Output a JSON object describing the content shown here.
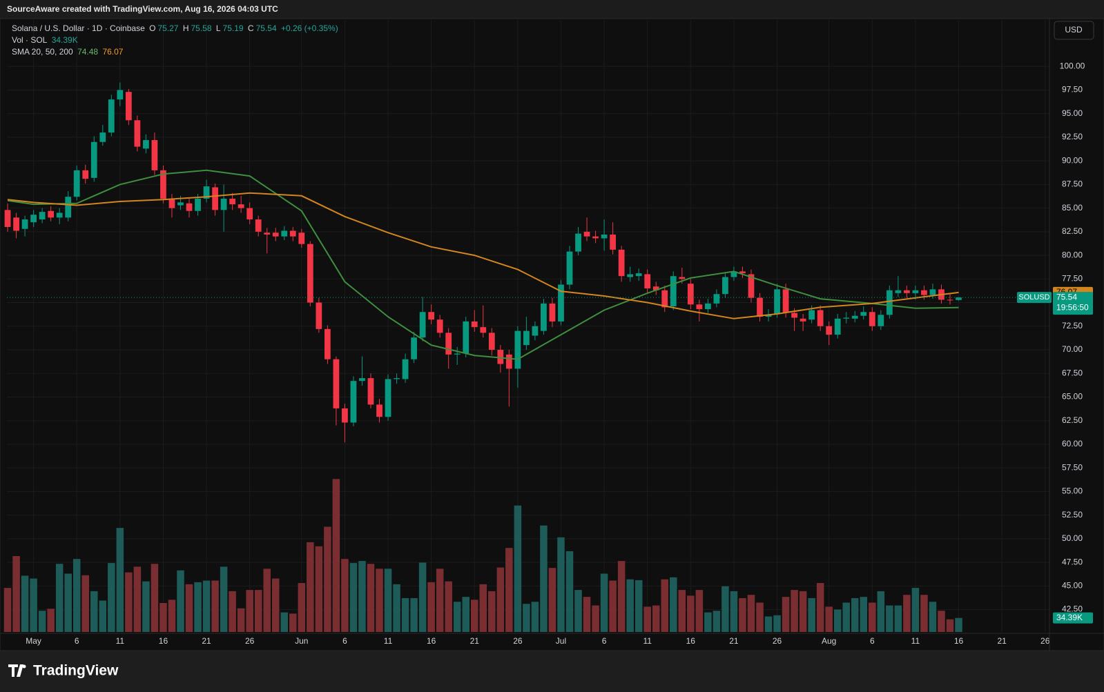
{
  "header": {
    "attribution": "SourceAware created with TradingView.com, Aug 16, 2026 04:03 UTC",
    "logo_text": "TradingView"
  },
  "chart_data": {
    "type": "candlestick",
    "title": "Solana / U.S. Dollar · 1D · Coinbase",
    "legend": {
      "o": "O",
      "h": "H",
      "l": "L",
      "c": "C",
      "change": "+0.26 (+0.35%)",
      "indicator_label": "SMA 20, 50, 200"
    },
    "currency_button": "USD",
    "symbol_tag": "SOLUSD",
    "countdown": "19:56:50",
    "colors": {
      "up": "#089981",
      "down": "#f23645",
      "vol_up": "#1d5c58",
      "vol_down": "#7a2e32"
    },
    "x": [
      "2026-04-28",
      "2026-04-29",
      "2026-04-30",
      "2026-05-01",
      "2026-05-02",
      "2026-05-03",
      "2026-05-04",
      "2026-05-05",
      "2026-05-06",
      "2026-05-07",
      "2026-05-08",
      "2026-05-09",
      "2026-05-10",
      "2026-05-11",
      "2026-05-12",
      "2026-05-13",
      "2026-05-14",
      "2026-05-15",
      "2026-05-16",
      "2026-05-17",
      "2026-05-18",
      "2026-05-19",
      "2026-05-20",
      "2026-05-21",
      "2026-05-22",
      "2026-05-23",
      "2026-05-24",
      "2026-05-25",
      "2026-05-26",
      "2026-05-27",
      "2026-05-28",
      "2026-05-29",
      "2026-05-30",
      "2026-05-31",
      "2026-06-01",
      "2026-06-02",
      "2026-06-03",
      "2026-06-04",
      "2026-06-05",
      "2026-06-06",
      "2026-06-07",
      "2026-06-08",
      "2026-06-09",
      "2026-06-10",
      "2026-06-11",
      "2026-06-12",
      "2026-06-13",
      "2026-06-14",
      "2026-06-15",
      "2026-06-16",
      "2026-06-17",
      "2026-06-18",
      "2026-06-19",
      "2026-06-20",
      "2026-06-21",
      "2026-06-22",
      "2026-06-23",
      "2026-06-24",
      "2026-06-25",
      "2026-06-26",
      "2026-06-27",
      "2026-06-28",
      "2026-06-29",
      "2026-06-30",
      "2026-07-01",
      "2026-07-02",
      "2026-07-03",
      "2026-07-04",
      "2026-07-05",
      "2026-07-06",
      "2026-07-07",
      "2026-07-08",
      "2026-07-09",
      "2026-07-10",
      "2026-07-11",
      "2026-07-12",
      "2026-07-13",
      "2026-07-14",
      "2026-07-15",
      "2026-07-16",
      "2026-07-17",
      "2026-07-18",
      "2026-07-19",
      "2026-07-20",
      "2026-07-21",
      "2026-07-22",
      "2026-07-23",
      "2026-07-24",
      "2026-07-25",
      "2026-07-26",
      "2026-07-27",
      "2026-07-28",
      "2026-07-29",
      "2026-07-30",
      "2026-07-31",
      "2026-08-01",
      "2026-08-02",
      "2026-08-03",
      "2026-08-04",
      "2026-08-05",
      "2026-08-06",
      "2026-08-07",
      "2026-08-08",
      "2026-08-09",
      "2026-08-10",
      "2026-08-11",
      "2026-08-12",
      "2026-08-13",
      "2026-08-14",
      "2026-08-15",
      "2026-08-16"
    ],
    "open": [
      84.8,
      84.0,
      82.8,
      83.5,
      83.8,
      84.7,
      84.0,
      84.0,
      86.2,
      89.0,
      88.2,
      92.0,
      93.0,
      96.5,
      97.3,
      94.3,
      91.3,
      92.2,
      89.0,
      86.0,
      85.3,
      85.5,
      84.7,
      86.0,
      87.2,
      84.8,
      86.0,
      85.4,
      85.0,
      83.8,
      82.4,
      82.4,
      82.0,
      82.6,
      82.4,
      81.2,
      75.0,
      72.2,
      69.0,
      63.8,
      62.3,
      66.7,
      67.0,
      64.2,
      62.9,
      66.9,
      66.9,
      69.0,
      71.3,
      74.0,
      73.2,
      71.8,
      69.5,
      69.6,
      73.0,
      72.4,
      71.8,
      70.0,
      69.5,
      68.0,
      70.5,
      71.5,
      72.0,
      74.9,
      73.0,
      76.9,
      80.4,
      82.5,
      82.0,
      81.8,
      82.2,
      80.6,
      77.7,
      77.8,
      78.0,
      76.7,
      76.3,
      74.6,
      77.7,
      77.0,
      74.8,
      74.3,
      74.9,
      75.9,
      77.7,
      78.3,
      78.0,
      75.5,
      73.5,
      73.8,
      76.4,
      73.9,
      73.3,
      73.2,
      74.2,
      72.5,
      71.6,
      73.3,
      73.3,
      73.6,
      74.0,
      72.5,
      73.7,
      76.0,
      76.3,
      76.0,
      76.3,
      75.8,
      76.4,
      75.3,
      75.27
    ],
    "high": [
      85.5,
      84.5,
      84.2,
      84.8,
      85.0,
      85.2,
      85.0,
      86.8,
      89.5,
      89.6,
      92.6,
      93.8,
      97.0,
      98.3,
      97.6,
      94.8,
      92.8,
      93.0,
      89.5,
      86.5,
      86.3,
      86.0,
      86.5,
      88.0,
      87.6,
      87.5,
      86.6,
      86.3,
      85.6,
      84.2,
      82.9,
      82.9,
      83.1,
      83.0,
      82.8,
      81.5,
      75.5,
      72.6,
      69.3,
      64.3,
      67.2,
      69.3,
      67.5,
      64.8,
      67.4,
      67.5,
      69.6,
      71.9,
      75.6,
      74.8,
      73.7,
      72.3,
      70.3,
      73.5,
      74.2,
      74.7,
      72.3,
      70.5,
      70.0,
      72.5,
      73.5,
      73.0,
      75.4,
      75.5,
      77.4,
      81.0,
      83.0,
      84.0,
      82.6,
      83.8,
      83.5,
      81.0,
      78.8,
      78.6,
      78.5,
      77.2,
      76.8,
      78.3,
      78.7,
      77.5,
      75.3,
      75.4,
      76.4,
      78.2,
      78.8,
      78.8,
      78.5,
      76.0,
      74.3,
      77.0,
      77.0,
      74.4,
      73.8,
      74.7,
      74.7,
      73.0,
      73.8,
      74.0,
      74.1,
      74.6,
      74.5,
      74.2,
      76.8,
      77.8,
      76.8,
      76.8,
      76.8,
      77.0,
      76.9,
      75.9,
      75.58
    ],
    "low": [
      82.5,
      81.8,
      82.0,
      83.0,
      83.4,
      83.6,
      83.3,
      83.6,
      85.8,
      87.6,
      87.8,
      91.6,
      92.6,
      95.8,
      93.8,
      91.0,
      90.8,
      88.5,
      85.5,
      84.0,
      84.8,
      84.0,
      84.2,
      85.6,
      84.2,
      82.5,
      84.8,
      84.5,
      83.3,
      82.0,
      80.2,
      81.5,
      81.6,
      81.5,
      80.8,
      74.6,
      71.8,
      68.5,
      62.0,
      60.2,
      61.9,
      66.2,
      63.8,
      62.3,
      62.5,
      66.4,
      66.5,
      68.6,
      70.9,
      72.7,
      71.3,
      68.0,
      68.4,
      69.2,
      71.9,
      71.3,
      69.4,
      67.6,
      64.0,
      66.0,
      70.0,
      71.0,
      71.6,
      72.4,
      72.6,
      76.4,
      80.0,
      81.5,
      81.3,
      80.5,
      80.1,
      77.2,
      77.2,
      77.3,
      76.0,
      75.8,
      74.0,
      74.2,
      77.0,
      74.3,
      73.0,
      73.9,
      74.5,
      75.5,
      77.3,
      77.6,
      75.0,
      73.0,
      73.0,
      73.4,
      73.4,
      72.0,
      72.0,
      72.8,
      72.0,
      70.5,
      71.2,
      72.8,
      72.9,
      73.2,
      72.0,
      72.1,
      73.3,
      75.6,
      75.5,
      75.3,
      75.3,
      75.4,
      74.9,
      74.8,
      75.19
    ],
    "close": [
      83.0,
      82.6,
      83.8,
      84.3,
      84.6,
      84.0,
      84.5,
      86.2,
      89.0,
      88.1,
      92.0,
      93.0,
      96.5,
      97.5,
      94.3,
      91.5,
      92.2,
      89.0,
      86.0,
      85.0,
      85.6,
      84.7,
      86.0,
      87.3,
      84.8,
      86.0,
      85.4,
      85.0,
      83.8,
      82.5,
      82.2,
      82.0,
      82.6,
      82.0,
      81.2,
      75.0,
      72.2,
      69.0,
      63.8,
      62.3,
      66.7,
      67.0,
      64.2,
      62.9,
      66.9,
      67.0,
      69.0,
      71.3,
      74.0,
      73.2,
      71.8,
      69.5,
      69.6,
      73.0,
      72.4,
      71.8,
      70.0,
      68.5,
      68.0,
      72.0,
      72.0,
      72.5,
      74.9,
      73.0,
      76.9,
      80.4,
      82.3,
      82.0,
      81.8,
      82.2,
      80.6,
      77.8,
      78.0,
      78.1,
      76.5,
      76.3,
      74.5,
      77.8,
      77.5,
      74.8,
      74.3,
      74.9,
      75.9,
      77.7,
      78.3,
      78.1,
      75.5,
      73.5,
      73.7,
      76.4,
      73.9,
      73.4,
      73.0,
      74.2,
      72.5,
      71.6,
      73.3,
      73.4,
      73.6,
      74.0,
      72.5,
      73.7,
      76.3,
      76.3,
      76.0,
      76.3,
      75.8,
      76.4,
      75.3,
      75.28,
      75.54
    ],
    "volume": {
      "label": "Vol · SOL",
      "last_label": "34.39K",
      "ylim": [
        0,
        1500
      ],
      "values": [
        108,
        186,
        138,
        131,
        52,
        57,
        167,
        143,
        179,
        139,
        100,
        77,
        169,
        255,
        146,
        160,
        124,
        167,
        71,
        79,
        151,
        117,
        122,
        126,
        126,
        160,
        100,
        58,
        103,
        103,
        155,
        131,
        48,
        45,
        120,
        220,
        210,
        258,
        375,
        179,
        169,
        174,
        167,
        155,
        155,
        117,
        83,
        83,
        170,
        122,
        155,
        124,
        74,
        86,
        79,
        117,
        100,
        158,
        206,
        310,
        69,
        74,
        261,
        157,
        232,
        198,
        103,
        86,
        65,
        143,
        126,
        174,
        129,
        127,
        62,
        65,
        129,
        134,
        103,
        89,
        103,
        48,
        52,
        112,
        100,
        83,
        91,
        72,
        38,
        41,
        86,
        103,
        100,
        83,
        120,
        62,
        55,
        72,
        83,
        86,
        72,
        100,
        65,
        65,
        91,
        108,
        91,
        74,
        52,
        31,
        34.39
      ]
    },
    "series": [
      {
        "color": "#3f8f3f",
        "x": [
          "2026-04-28",
          "2026-05-01",
          "2026-05-06",
          "2026-05-11",
          "2026-05-16",
          "2026-05-21",
          "2026-05-26",
          "2026-06-01",
          "2026-06-06",
          "2026-06-11",
          "2026-06-16",
          "2026-06-21",
          "2026-06-26",
          "2026-07-01",
          "2026-07-06",
          "2026-07-11",
          "2026-07-16",
          "2026-07-21",
          "2026-07-26",
          "2026-07-31",
          "2026-08-06",
          "2026-08-11",
          "2026-08-16"
        ],
        "values": [
          85.8,
          85.4,
          85.5,
          87.5,
          88.6,
          89.0,
          88.4,
          84.7,
          77.2,
          73.5,
          70.5,
          69.4,
          69.0,
          71.6,
          74.2,
          76.0,
          77.6,
          78.3,
          76.8,
          75.4,
          74.9,
          74.4,
          74.48
        ]
      },
      {
        "color": "#d4861e",
        "x": [
          "2026-04-28",
          "2026-05-01",
          "2026-05-06",
          "2026-05-11",
          "2026-05-16",
          "2026-05-21",
          "2026-05-26",
          "2026-06-01",
          "2026-06-06",
          "2026-06-11",
          "2026-06-16",
          "2026-06-21",
          "2026-06-26",
          "2026-07-01",
          "2026-07-06",
          "2026-07-11",
          "2026-07-16",
          "2026-07-21",
          "2026-07-26",
          "2026-07-31",
          "2026-08-06",
          "2026-08-11",
          "2026-08-16"
        ],
        "values": [
          85.9,
          85.6,
          85.3,
          85.7,
          85.9,
          86.2,
          86.6,
          86.3,
          84.1,
          82.4,
          80.9,
          80.0,
          78.5,
          76.2,
          75.7,
          75.0,
          74.1,
          73.3,
          73.8,
          74.5,
          74.9,
          75.5,
          76.07
        ]
      }
    ],
    "xlim": [
      "2026-04-27T22:00:00Z",
      "2026-08-26T12:00:00Z"
    ],
    "xticks": [
      {
        "value": "2026-05-01",
        "label": "May"
      },
      {
        "value": "2026-05-06",
        "label": "6"
      },
      {
        "value": "2026-05-11",
        "label": "11"
      },
      {
        "value": "2026-05-16",
        "label": "16"
      },
      {
        "value": "2026-05-21",
        "label": "21"
      },
      {
        "value": "2026-05-26",
        "label": "26"
      },
      {
        "value": "2026-06-01",
        "label": "Jun"
      },
      {
        "value": "2026-06-06",
        "label": "6"
      },
      {
        "value": "2026-06-11",
        "label": "11"
      },
      {
        "value": "2026-06-16",
        "label": "16"
      },
      {
        "value": "2026-06-21",
        "label": "21"
      },
      {
        "value": "2026-06-26",
        "label": "26"
      },
      {
        "value": "2026-07-01",
        "label": "Jul"
      },
      {
        "value": "2026-07-06",
        "label": "6"
      },
      {
        "value": "2026-07-11",
        "label": "11"
      },
      {
        "value": "2026-07-16",
        "label": "16"
      },
      {
        "value": "2026-07-21",
        "label": "21"
      },
      {
        "value": "2026-07-26",
        "label": "26"
      },
      {
        "value": "2026-08-01",
        "label": "Aug"
      },
      {
        "value": "2026-08-06",
        "label": "6"
      },
      {
        "value": "2026-08-11",
        "label": "11"
      },
      {
        "value": "2026-08-16",
        "label": "16"
      },
      {
        "value": "2026-08-21",
        "label": "21"
      },
      {
        "value": "2026-08-26",
        "label": "26"
      }
    ],
    "ylim": [
      40.13,
      104.91
    ],
    "yticks": [
      {
        "value": 42.5,
        "label": "42.50"
      },
      {
        "value": 45,
        "label": "45.00"
      },
      {
        "value": 47.5,
        "label": "47.50"
      },
      {
        "value": 50,
        "label": "50.00"
      },
      {
        "value": 52.5,
        "label": "52.50"
      },
      {
        "value": 55,
        "label": "55.00"
      },
      {
        "value": 57.5,
        "label": "57.50"
      },
      {
        "value": 60,
        "label": "60.00"
      },
      {
        "value": 62.5,
        "label": "62.50"
      },
      {
        "value": 65,
        "label": "65.00"
      },
      {
        "value": 67.5,
        "label": "67.50"
      },
      {
        "value": 70,
        "label": "70.00"
      },
      {
        "value": 72.5,
        "label": "72.50"
      },
      {
        "value": 75,
        "label": "75.00"
      },
      {
        "value": 77.5,
        "label": "77.50"
      },
      {
        "value": 80,
        "label": "80.00"
      },
      {
        "value": 82.5,
        "label": "82.50"
      },
      {
        "value": 85,
        "label": "85.00"
      },
      {
        "value": 87.5,
        "label": "87.50"
      },
      {
        "value": 90,
        "label": "90.00"
      },
      {
        "value": 92.5,
        "label": "92.50"
      },
      {
        "value": 95,
        "label": "95.00"
      },
      {
        "value": 97.5,
        "label": "97.50"
      },
      {
        "value": 100,
        "label": "100.00"
      }
    ],
    "grid": true
  }
}
